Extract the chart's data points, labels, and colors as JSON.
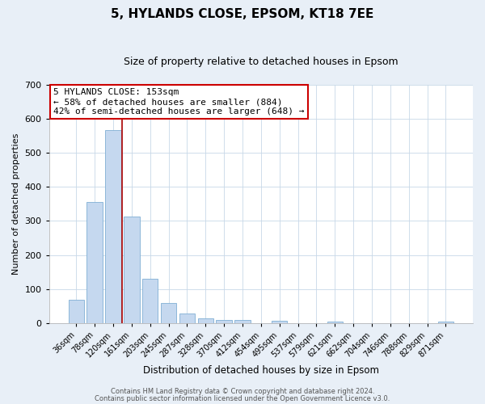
{
  "title": "5, HYLANDS CLOSE, EPSOM, KT18 7EE",
  "subtitle": "Size of property relative to detached houses in Epsom",
  "xlabel": "Distribution of detached houses by size in Epsom",
  "ylabel": "Number of detached properties",
  "bar_labels": [
    "36sqm",
    "78sqm",
    "120sqm",
    "161sqm",
    "203sqm",
    "245sqm",
    "287sqm",
    "328sqm",
    "370sqm",
    "412sqm",
    "454sqm",
    "495sqm",
    "537sqm",
    "579sqm",
    "621sqm",
    "662sqm",
    "704sqm",
    "746sqm",
    "788sqm",
    "829sqm",
    "871sqm"
  ],
  "bar_values": [
    68,
    355,
    568,
    313,
    131,
    58,
    27,
    14,
    8,
    10,
    0,
    7,
    0,
    0,
    5,
    0,
    0,
    0,
    0,
    0,
    5
  ],
  "bar_color": "#c5d8ef",
  "bar_edge_color": "#7fafd4",
  "bar_edge_width": 0.6,
  "vline_position": 2.5,
  "vline_color": "#aa0000",
  "vline_linewidth": 1.2,
  "annotation_lines": [
    "5 HYLANDS CLOSE: 153sqm",
    "← 58% of detached houses are smaller (884)",
    "42% of semi-detached houses are larger (648) →"
  ],
  "annotation_box_facecolor": "#ffffff",
  "annotation_box_edgecolor": "#cc0000",
  "ylim": [
    0,
    700
  ],
  "yticks": [
    0,
    100,
    200,
    300,
    400,
    500,
    600,
    700
  ],
  "grid_color": "#c8d8e8",
  "plot_bg_color": "#ffffff",
  "fig_bg_color": "#e8eff7",
  "title_fontsize": 11,
  "subtitle_fontsize": 9,
  "ylabel_fontsize": 8,
  "xlabel_fontsize": 8.5,
  "footer_line1": "Contains HM Land Registry data © Crown copyright and database right 2024.",
  "footer_line2": "Contains public sector information licensed under the Open Government Licence v3.0."
}
